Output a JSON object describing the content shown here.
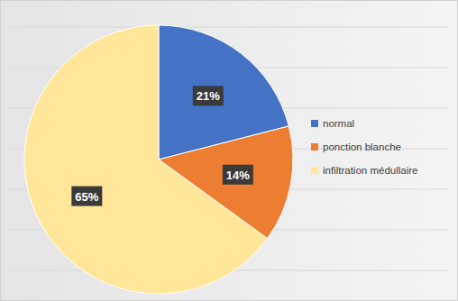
{
  "chart_data": {
    "type": "pie",
    "categories": [
      "normal",
      "ponction blanche",
      "infiltration médullaire"
    ],
    "values": [
      21,
      14,
      65
    ],
    "value_labels": [
      "21%",
      "14%",
      "65%"
    ],
    "colors": [
      "#4472c4",
      "#ed7d31",
      "#ffe699"
    ],
    "data_labels": true,
    "legend": "right"
  }
}
